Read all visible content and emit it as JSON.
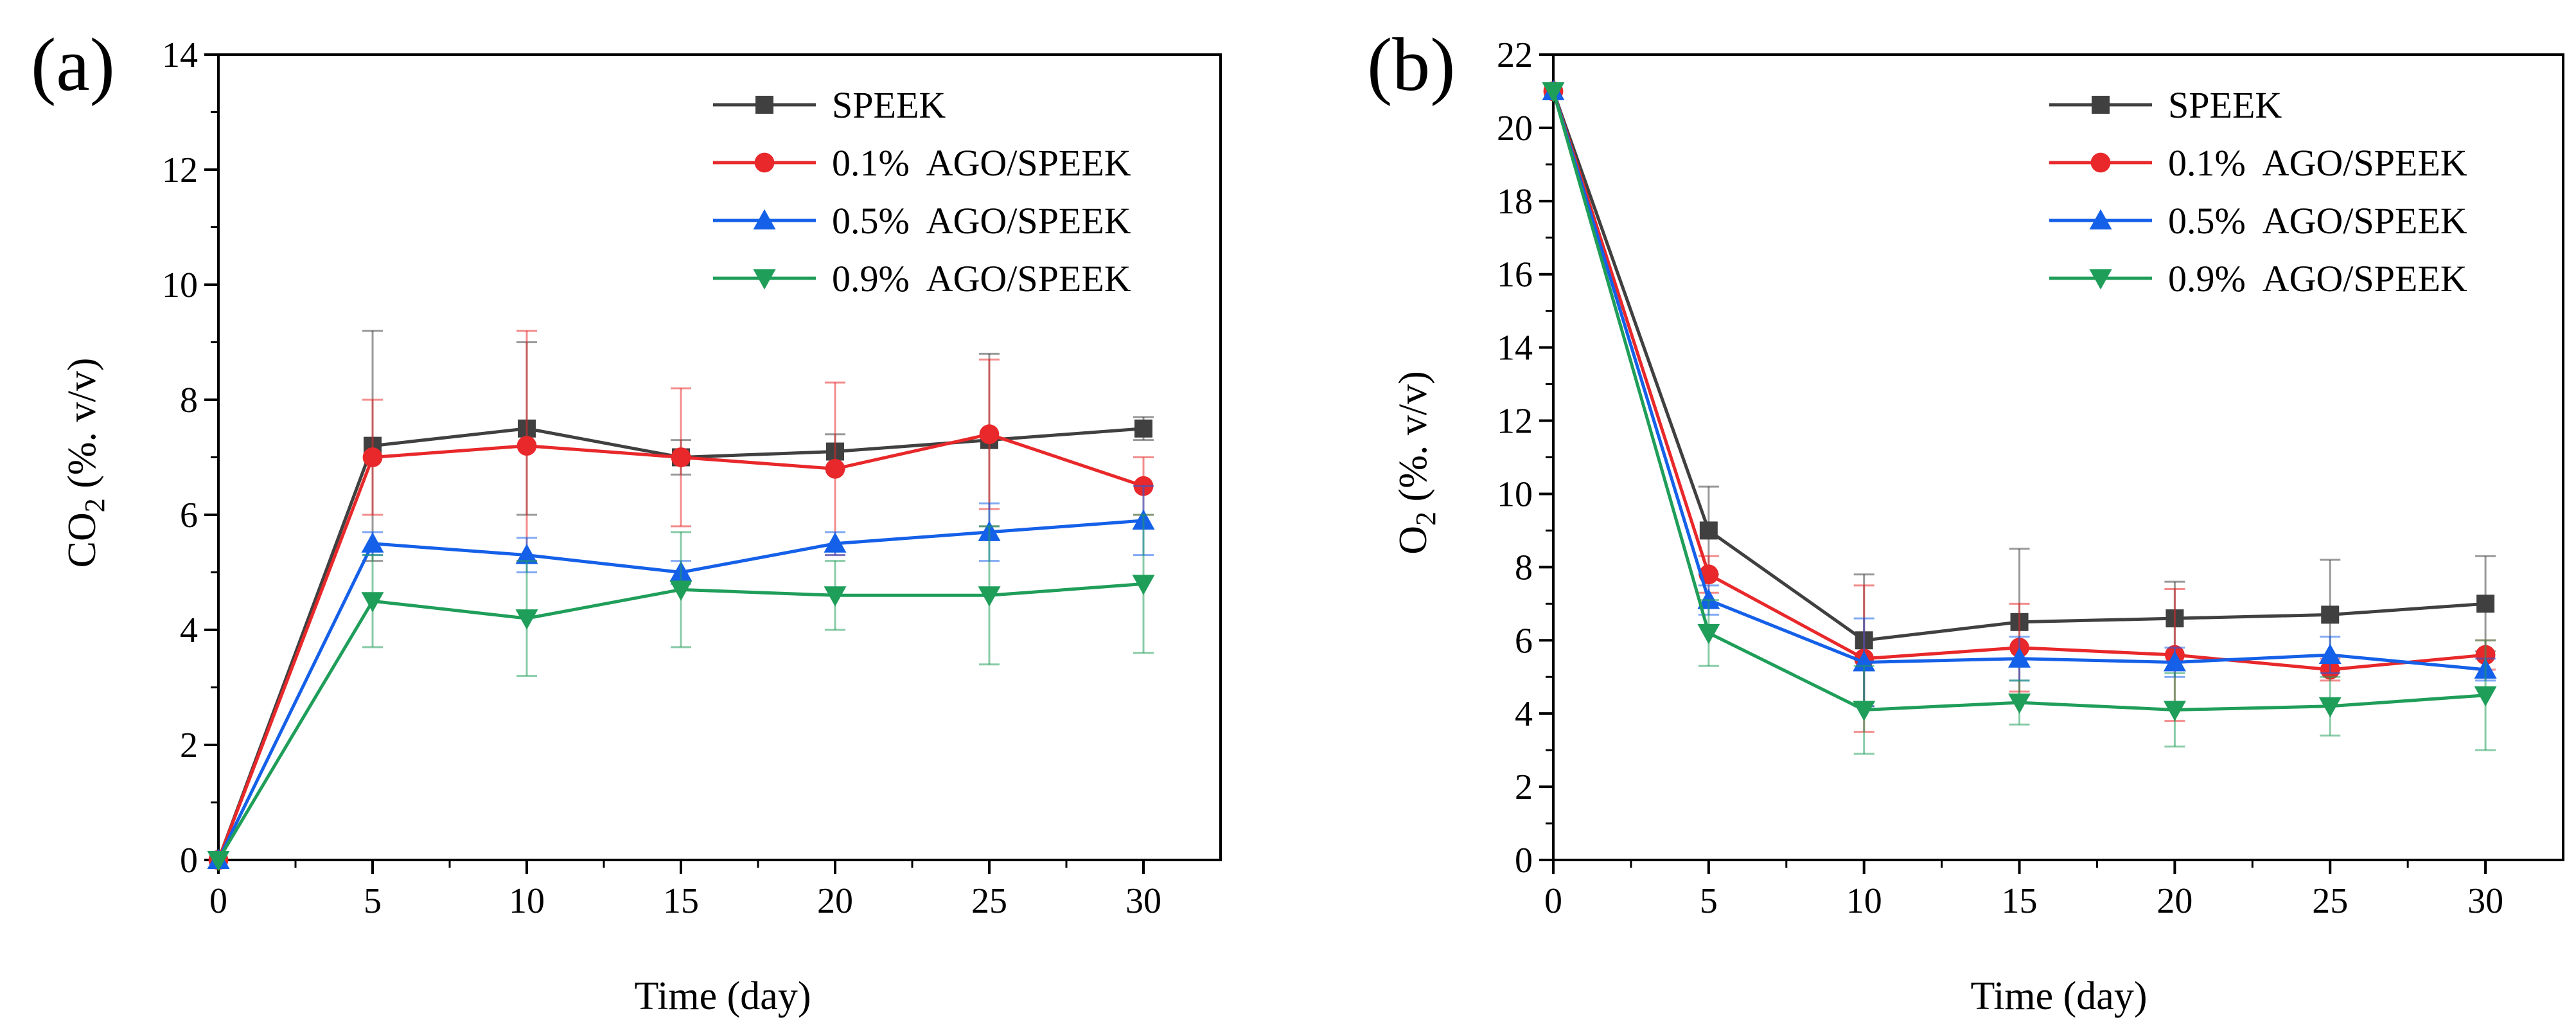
{
  "chart_data": [
    {
      "type": "line",
      "panel_label": "(a)",
      "xlabel": "Time (day)",
      "ylabel_main": "CO",
      "ylabel_sub": "2",
      "ylabel_rest": " (%. v/v)",
      "x": [
        0,
        5,
        10,
        15,
        20,
        25,
        30
      ],
      "xticks": [
        "0",
        "5",
        "10",
        "15",
        "20",
        "25",
        "30"
      ],
      "yticks": [
        "0",
        "2",
        "4",
        "6",
        "8",
        "10",
        "12",
        "14"
      ],
      "xlim": [
        0,
        32.5
      ],
      "ylim": [
        0,
        14
      ],
      "series": [
        {
          "name": "SPEEK",
          "color": "#404040",
          "marker": "square",
          "values": [
            0,
            7.2,
            7.5,
            7.0,
            7.1,
            7.3,
            7.5
          ],
          "errors": [
            0,
            2.0,
            1.5,
            0.3,
            0.3,
            1.5,
            0.2
          ]
        },
        {
          "name": "0.1%  AGO/SPEEK",
          "color": "#e8282a",
          "marker": "circle",
          "values": [
            0,
            7.0,
            7.2,
            7.0,
            6.8,
            7.4,
            6.5
          ],
          "errors": [
            0,
            1.0,
            2.0,
            1.2,
            1.5,
            1.3,
            0.5
          ]
        },
        {
          "name": "0.5%  AGO/SPEEK",
          "color": "#1560e8",
          "marker": "triangle-up",
          "values": [
            0,
            5.5,
            5.3,
            5.0,
            5.5,
            5.7,
            5.9
          ],
          "errors": [
            0,
            0.2,
            0.3,
            0.2,
            0.2,
            0.5,
            0.6
          ]
        },
        {
          "name": "0.9%  AGO/SPEEK",
          "color": "#1f9e5a",
          "marker": "triangle-down",
          "values": [
            0,
            4.5,
            4.2,
            4.7,
            4.6,
            4.6,
            4.8
          ],
          "errors": [
            0,
            0.8,
            1.0,
            1.0,
            0.6,
            1.2,
            1.2
          ]
        }
      ],
      "legend_position": "top-right",
      "grid": false
    },
    {
      "type": "line",
      "panel_label": "(b)",
      "xlabel": "Time (day)",
      "ylabel_main": "O",
      "ylabel_sub": "2",
      "ylabel_rest": " (%. v/v)",
      "x": [
        0,
        5,
        10,
        15,
        20,
        25,
        30
      ],
      "xticks": [
        "0",
        "5",
        "10",
        "15",
        "20",
        "25",
        "30"
      ],
      "yticks": [
        "0",
        "2",
        "4",
        "6",
        "8",
        "10",
        "12",
        "14",
        "16",
        "18",
        "20",
        "22"
      ],
      "xlim": [
        0,
        32.5
      ],
      "ylim": [
        0,
        22
      ],
      "series": [
        {
          "name": "SPEEK",
          "color": "#404040",
          "marker": "square",
          "values": [
            21,
            9.0,
            6.0,
            6.5,
            6.6,
            6.7,
            7.0
          ],
          "errors": [
            0,
            1.2,
            1.8,
            2.0,
            1.0,
            1.5,
            1.3
          ]
        },
        {
          "name": "0.1%  AGO/SPEEK",
          "color": "#e8282a",
          "marker": "circle",
          "values": [
            21,
            7.8,
            5.5,
            5.8,
            5.6,
            5.2,
            5.6
          ],
          "errors": [
            0,
            0.5,
            2.0,
            1.2,
            1.8,
            0.3,
            0.4
          ]
        },
        {
          "name": "0.5%  AGO/SPEEK",
          "color": "#1560e8",
          "marker": "triangle-up",
          "values": [
            21,
            7.1,
            5.4,
            5.5,
            5.4,
            5.6,
            5.2
          ],
          "errors": [
            0,
            0.4,
            1.2,
            0.6,
            0.4,
            0.5,
            0.3
          ]
        },
        {
          "name": "0.9%  AGO/SPEEK",
          "color": "#1f9e5a",
          "marker": "triangle-down",
          "values": [
            21,
            6.2,
            4.1,
            4.3,
            4.1,
            4.2,
            4.5
          ],
          "errors": [
            0,
            0.9,
            1.2,
            0.6,
            1.0,
            0.8,
            1.5
          ]
        }
      ],
      "legend_position": "top-right",
      "grid": false
    }
  ]
}
